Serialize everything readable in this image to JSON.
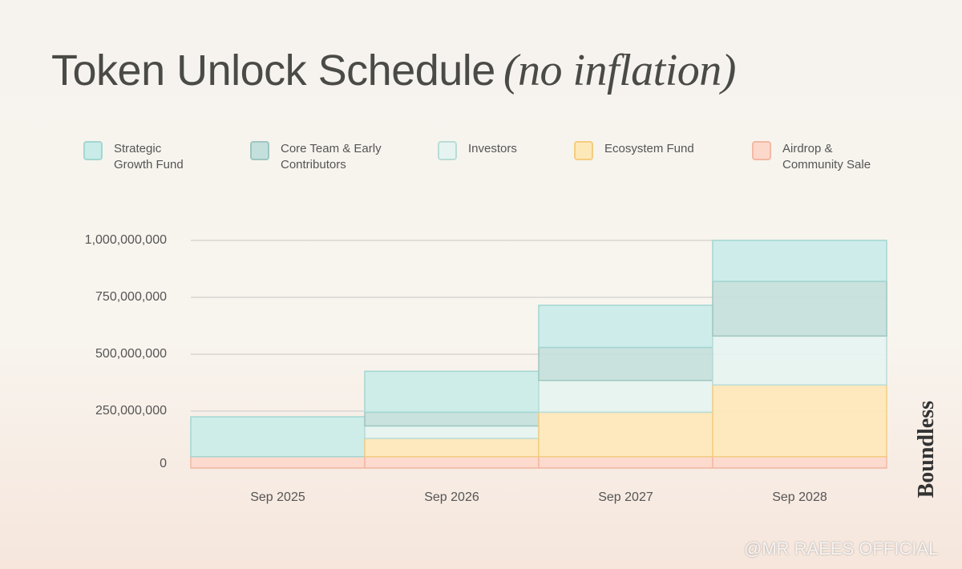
{
  "chart_data": {
    "type": "stacked_bar",
    "title": "Token Unlock Schedule",
    "subtitle": "(no inflation)",
    "categories": [
      "Sep 2025",
      "Sep 2026",
      "Sep 2027",
      "Sep 2028"
    ],
    "series": [
      {
        "name": "Strategic Growth Fund",
        "color": "#c9ece9",
        "stroke": "#a3d6d2",
        "values": [
          175000000,
          180000000,
          185000000,
          180000000
        ]
      },
      {
        "name": "Core Team & Early Contributors",
        "color": "#c4e0dc",
        "stroke": "#9fc6c1",
        "values": [
          0,
          60000000,
          145000000,
          240000000
        ]
      },
      {
        "name": "Investors",
        "color": "#e6f4f1",
        "stroke": "#b9dcd8",
        "values": [
          0,
          55000000,
          140000000,
          215000000
        ]
      },
      {
        "name": "Ecosystem Fund",
        "color": "#fde8b8",
        "stroke": "#f3cd80",
        "values": [
          0,
          80000000,
          195000000,
          315000000
        ]
      },
      {
        "name": "Airdrop & Community Sale",
        "color": "#fcd8cb",
        "stroke": "#f3b8a3",
        "values": [
          50000000,
          50000000,
          50000000,
          50000000
        ]
      }
    ],
    "ylim": [
      0,
      1000000000
    ],
    "yticks": [
      0,
      {
        "value": 250000000,
        "label": "250,000,000"
      },
      {
        "value": 500000000,
        "label": "500,000,000"
      },
      {
        "value": 750000000,
        "label": "750,000,000"
      },
      {
        "value": 1000000000,
        "label": "1,000,000,000"
      }
    ],
    "grid": true,
    "brand": "Boundless",
    "watermark": "@MR RAEES OFFICIAL"
  }
}
